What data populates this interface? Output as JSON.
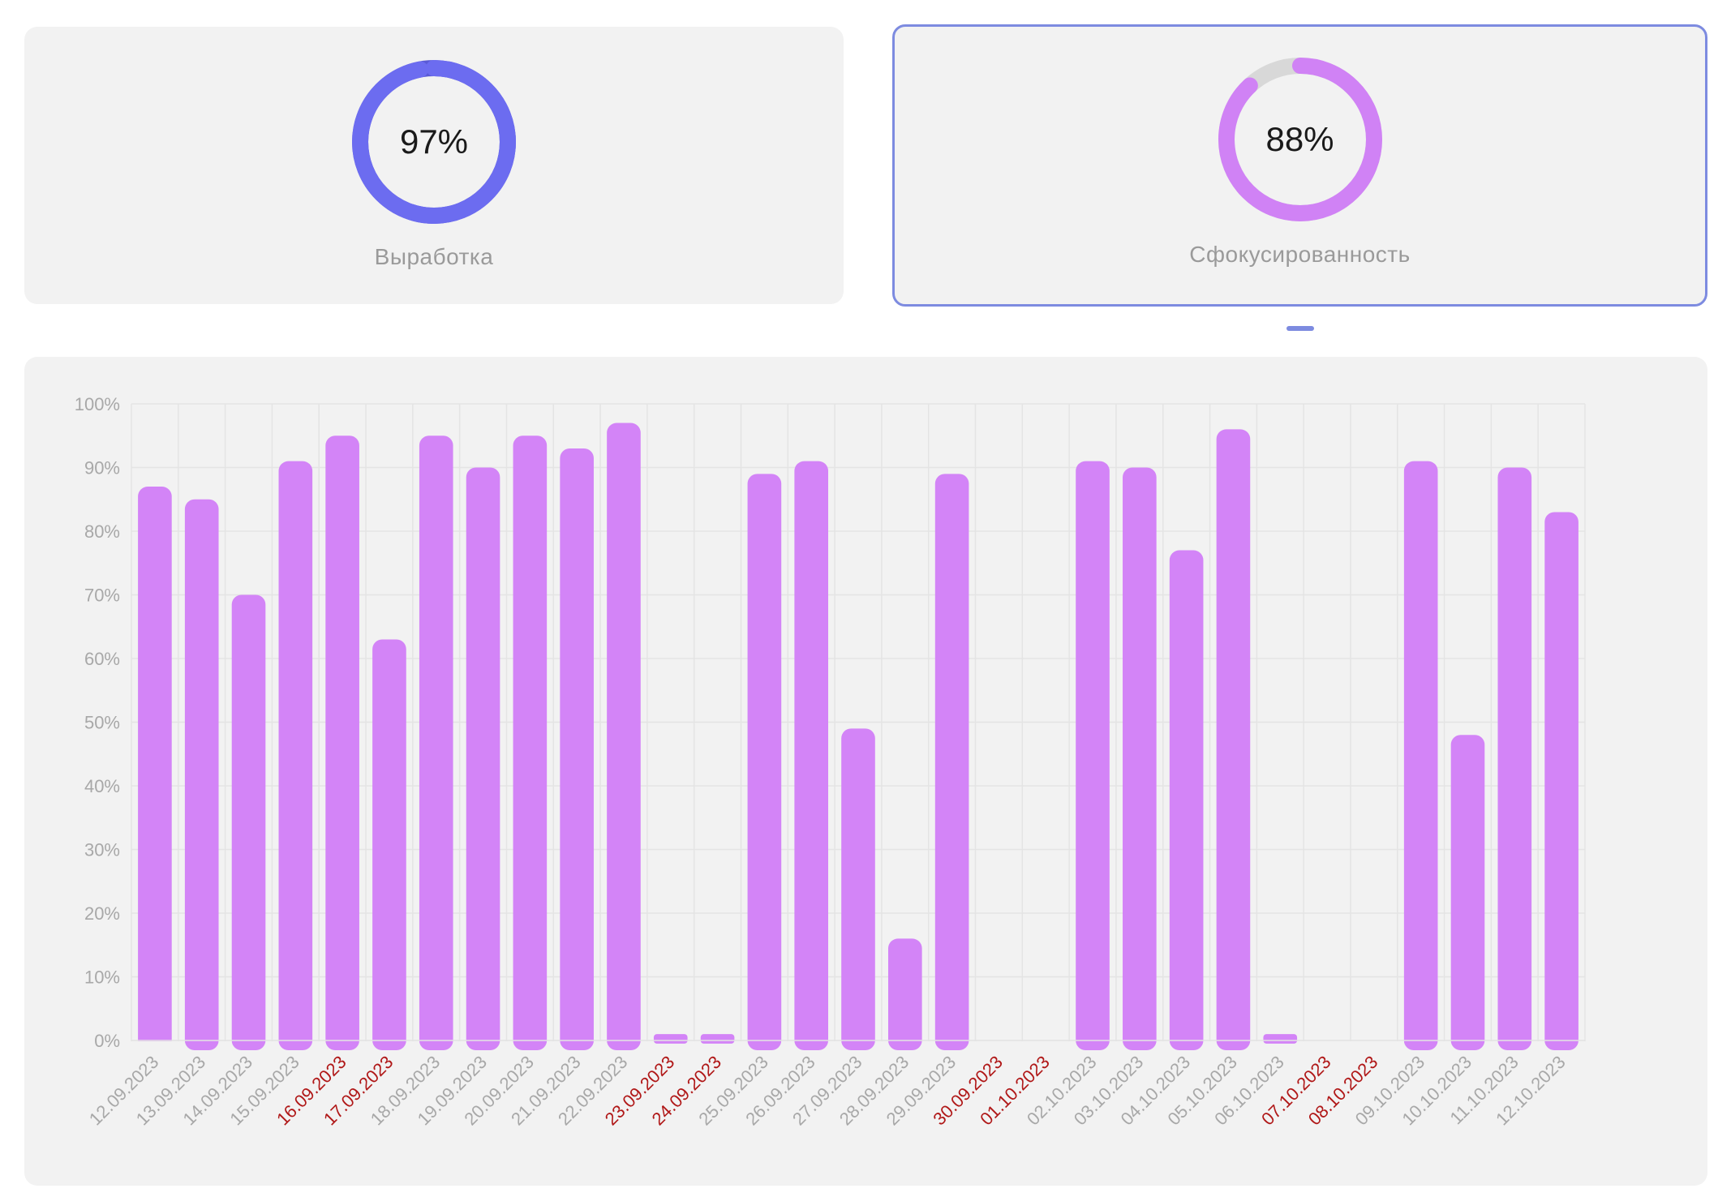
{
  "cards": [
    {
      "id": "output",
      "value_text": "97%",
      "value": 97,
      "label": "Выработка",
      "color": "#6c6cf0",
      "track_color": "#5a5ad6",
      "selected": false
    },
    {
      "id": "focus",
      "value_text": "88%",
      "value": 88,
      "label": "Сфокусированность",
      "color": "#d082f5",
      "track_color": "#d8d8d8",
      "selected": true
    }
  ],
  "colors": {
    "bar": "#d384f7",
    "weekend_label": "#b01818",
    "weekday_label": "#a8a8a8",
    "grid": "#e4e4e4",
    "selection": "#7d8be0"
  },
  "chart_data": {
    "type": "bar",
    "ylim": [
      0,
      100
    ],
    "y_ticks": [
      "0%",
      "10%",
      "20%",
      "30%",
      "40%",
      "50%",
      "60%",
      "70%",
      "80%",
      "90%",
      "100%"
    ],
    "categories": [
      "12.09.2023",
      "13.09.2023",
      "14.09.2023",
      "15.09.2023",
      "16.09.2023",
      "17.09.2023",
      "18.09.2023",
      "19.09.2023",
      "20.09.2023",
      "21.09.2023",
      "22.09.2023",
      "23.09.2023",
      "24.09.2023",
      "25.09.2023",
      "26.09.2023",
      "27.09.2023",
      "28.09.2023",
      "29.09.2023",
      "30.09.2023",
      "01.10.2023",
      "02.10.2023",
      "03.10.2023",
      "04.10.2023",
      "05.10.2023",
      "06.10.2023",
      "07.10.2023",
      "08.10.2023",
      "09.10.2023",
      "10.10.2023",
      "11.10.2023",
      "12.10.2023"
    ],
    "values": [
      87,
      85,
      70,
      91,
      95,
      63,
      95,
      90,
      95,
      93,
      97,
      1,
      1,
      89,
      91,
      49,
      16,
      89,
      0,
      0,
      91,
      90,
      77,
      96,
      1,
      0,
      0,
      91,
      48,
      90,
      83
    ],
    "weekend": [
      false,
      false,
      false,
      false,
      true,
      true,
      false,
      false,
      false,
      false,
      false,
      true,
      true,
      false,
      false,
      false,
      false,
      false,
      true,
      true,
      false,
      false,
      false,
      false,
      false,
      true,
      true,
      false,
      false,
      false,
      false
    ]
  }
}
